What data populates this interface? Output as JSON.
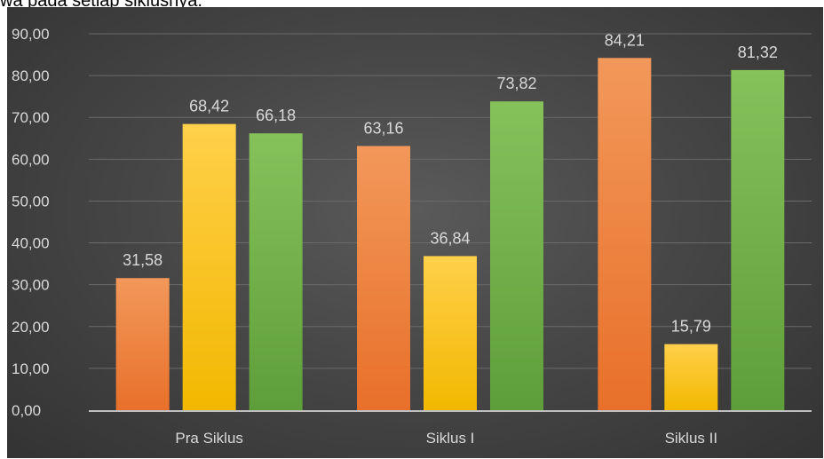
{
  "caption": "wa pada setiap siklusnya.",
  "chart_data": {
    "type": "bar",
    "categories": [
      "Pra Siklus",
      "Siklus I",
      "Siklus II"
    ],
    "series": [
      {
        "values": [
          31.58,
          63.16,
          84.21
        ],
        "color": "#ED7D31"
      },
      {
        "values": [
          68.42,
          36.84,
          15.79
        ],
        "color": "#FFC000"
      },
      {
        "values": [
          66.18,
          73.82,
          81.32
        ],
        "color": "#70AD47"
      }
    ],
    "data_labels": [
      [
        "31,58",
        "63,16",
        "84,21"
      ],
      [
        "68,42",
        "36,84",
        "15,79"
      ],
      [
        "66,18",
        "73,82",
        "81,32"
      ]
    ],
    "y_ticks": [
      "0,00",
      "10,00",
      "20,00",
      "30,00",
      "40,00",
      "50,00",
      "60,00",
      "70,00",
      "80,00",
      "90,00"
    ],
    "ylim": [
      0,
      90
    ],
    "grid": true,
    "legend": "none",
    "title": "",
    "xlabel": "",
    "ylabel": ""
  }
}
